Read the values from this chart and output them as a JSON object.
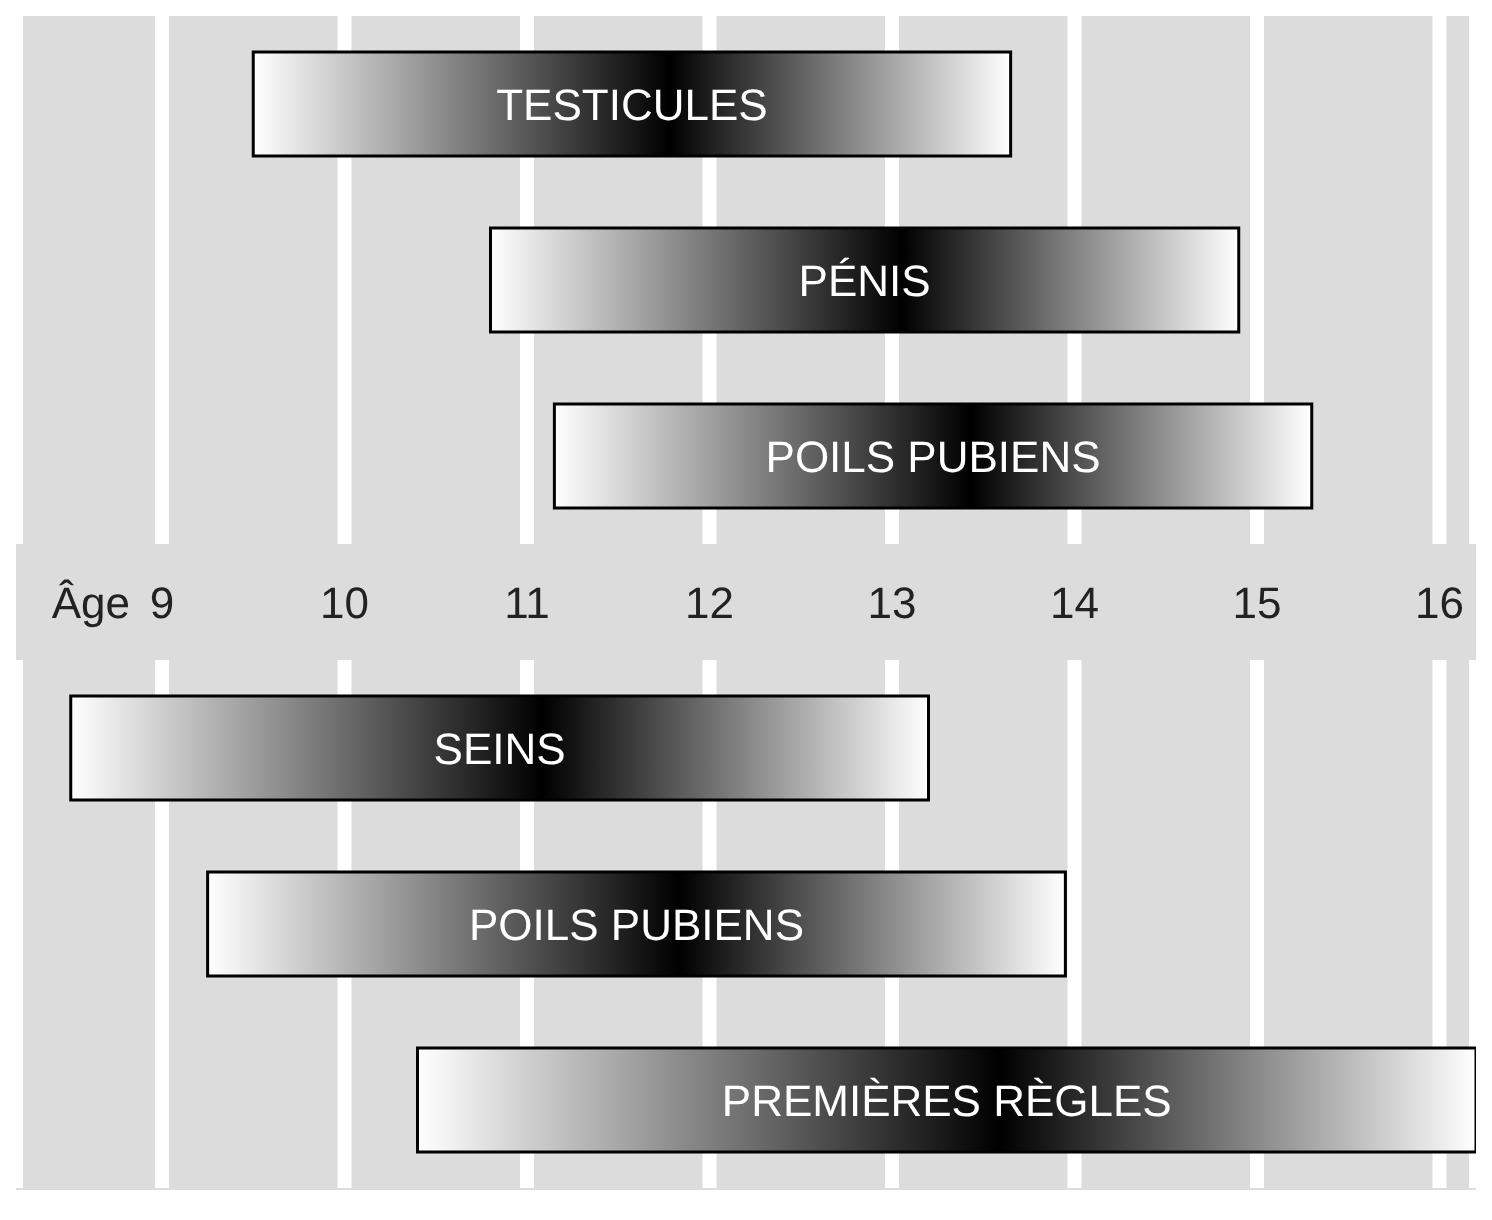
{
  "chart_data": [
    {
      "type": "bar",
      "orientation": "horizontal",
      "xlabel": "Âge",
      "categories": [
        "TESTICULES",
        "PÉNIS",
        "POILS PUBIENS"
      ],
      "base": [
        9.5,
        10.8,
        11.15
      ],
      "values": [
        4.15,
        4.1,
        4.15
      ],
      "color": "#000000",
      "xlim": [
        8.2,
        16.2
      ],
      "xticks": [
        9,
        10,
        11,
        12,
        13,
        14,
        15,
        16
      ],
      "grid": "x"
    },
    {
      "type": "bar",
      "orientation": "horizontal",
      "categories": [
        "SEINS",
        "POILS PUBIENS",
        "PREMIÈRES RÈGLES"
      ],
      "base": [
        8.5,
        9.25,
        10.4
      ],
      "values": [
        4.7,
        4.7,
        5.8
      ],
      "color": "#000000",
      "xlim": [
        8.2,
        16.2
      ],
      "xticks": [
        9,
        10,
        11,
        12,
        13,
        14,
        15,
        16
      ],
      "grid": "x",
      "tick_labels": false
    }
  ]
}
